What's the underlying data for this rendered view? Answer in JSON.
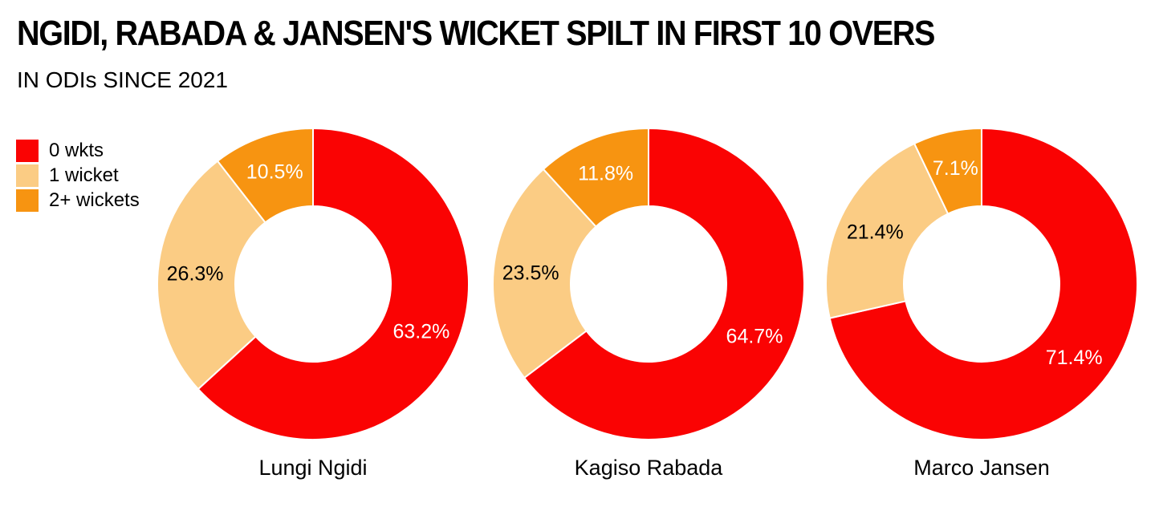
{
  "page": {
    "title": "NGIDI, RABADA & JANSEN'S WICKET SPILT IN FIRST 10 OVERS",
    "subtitle": "IN ODIs SINCE 2021",
    "background_color": "#FFFFFF",
    "text_color": "#000000"
  },
  "legend": {
    "position": "top-left",
    "items": [
      {
        "label": "0 wkts",
        "color": "#FA0303"
      },
      {
        "label": "1 wicket",
        "color": "#FBCC84"
      },
      {
        "label": "2+ wickets",
        "color": "#F79411"
      }
    ]
  },
  "chart_data": [
    {
      "type": "pie",
      "subtype": "donut",
      "title": "Lungi Ngidi",
      "categories": [
        "0 wkts",
        "1 wicket",
        "2+ wickets"
      ],
      "values": [
        63.2,
        26.3,
        10.5
      ],
      "data_labels": [
        "63.2%",
        "26.3%",
        "10.5%"
      ],
      "colors": [
        "#FA0303",
        "#FBCC84",
        "#F79411"
      ],
      "data_label_colors": [
        "#FFFFFF",
        "#000000",
        "#FFFFFF"
      ],
      "start_angle_deg": 0,
      "direction": "clockwise",
      "inner_radius_ratio": 0.5,
      "slice_border_color": "#FFFFFF"
    },
    {
      "type": "pie",
      "subtype": "donut",
      "title": "Kagiso Rabada",
      "categories": [
        "0 wkts",
        "1 wicket",
        "2+ wickets"
      ],
      "values": [
        64.7,
        23.5,
        11.8
      ],
      "data_labels": [
        "64.7%",
        "23.5%",
        "11.8%"
      ],
      "colors": [
        "#FA0303",
        "#FBCC84",
        "#F79411"
      ],
      "data_label_colors": [
        "#FFFFFF",
        "#000000",
        "#FFFFFF"
      ],
      "start_angle_deg": 0,
      "direction": "clockwise",
      "inner_radius_ratio": 0.5,
      "slice_border_color": "#FFFFFF"
    },
    {
      "type": "pie",
      "subtype": "donut",
      "title": "Marco Jansen",
      "categories": [
        "0 wkts",
        "1 wicket",
        "2+ wickets"
      ],
      "values": [
        71.4,
        21.4,
        7.1
      ],
      "data_labels": [
        "71.4%",
        "21.4%",
        "7.1%"
      ],
      "colors": [
        "#FA0303",
        "#FBCC84",
        "#F79411"
      ],
      "data_label_colors": [
        "#FFFFFF",
        "#000000",
        "#FFFFFF"
      ],
      "start_angle_deg": 0,
      "direction": "clockwise",
      "inner_radius_ratio": 0.5,
      "slice_border_color": "#FFFFFF"
    }
  ]
}
